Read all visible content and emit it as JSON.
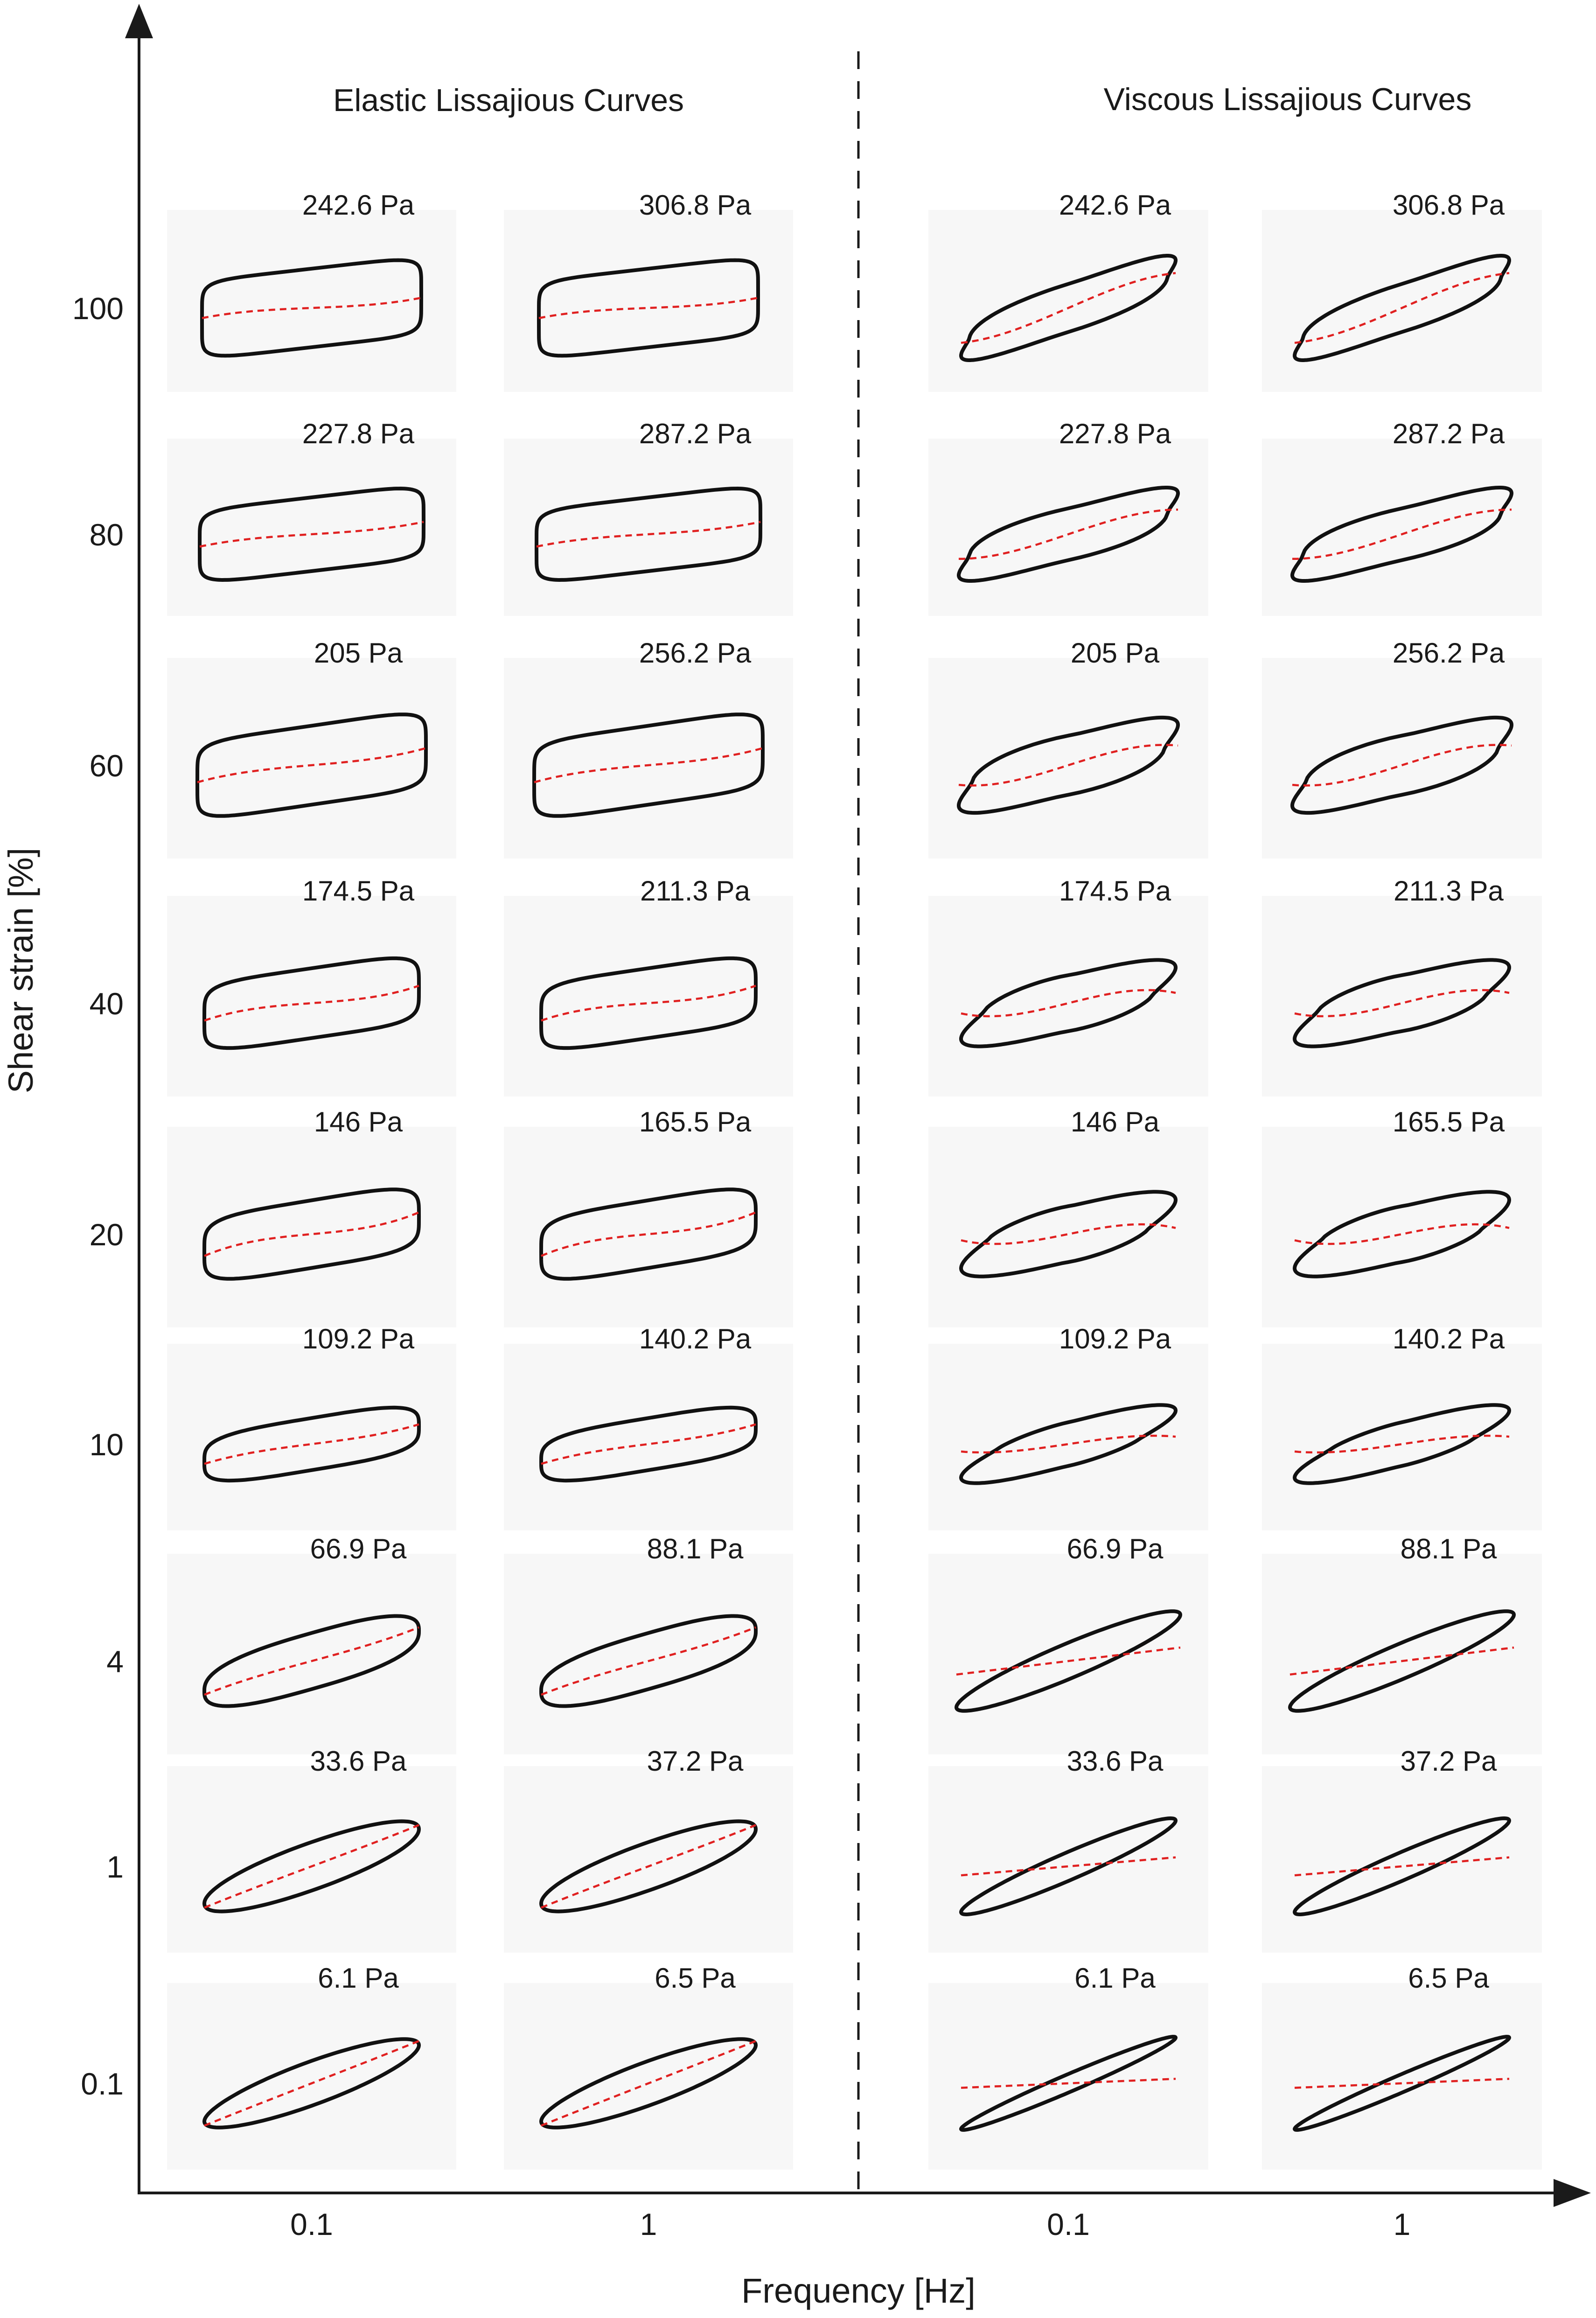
{
  "chart_data": {
    "type": "scatter",
    "title": "",
    "xlabel": "Frequency [Hz]",
    "ylabel": "Shear strain [%]",
    "sections": [
      "Elastic Lissajious Curves",
      "Viscous Lissajious Curves"
    ],
    "x_tick_labels": [
      "0.1",
      "1",
      "0.1",
      "1"
    ],
    "y_tick_labels": [
      "100",
      "80",
      "60",
      "40",
      "20",
      "10",
      "4",
      "1",
      "0.1"
    ],
    "grid": false,
    "legend": "none",
    "colors": {
      "loop": "#111111",
      "midline": "#e02020",
      "axis": "#1a1a1a"
    },
    "panels": [
      {
        "section": "Elastic Lissajious Curves",
        "frequency": "0.1",
        "strain": "100",
        "stress_label": "242.6 Pa"
      },
      {
        "section": "Elastic Lissajious Curves",
        "frequency": "1",
        "strain": "100",
        "stress_label": "306.8 Pa"
      },
      {
        "section": "Viscous Lissajious Curves",
        "frequency": "0.1",
        "strain": "100",
        "stress_label": "242.6 Pa"
      },
      {
        "section": "Viscous Lissajious Curves",
        "frequency": "1",
        "strain": "100",
        "stress_label": "306.8 Pa"
      },
      {
        "section": "Elastic Lissajious Curves",
        "frequency": "0.1",
        "strain": "80",
        "stress_label": "227.8 Pa"
      },
      {
        "section": "Elastic Lissajious Curves",
        "frequency": "1",
        "strain": "80",
        "stress_label": "287.2 Pa"
      },
      {
        "section": "Viscous Lissajious Curves",
        "frequency": "0.1",
        "strain": "80",
        "stress_label": "227.8 Pa"
      },
      {
        "section": "Viscous Lissajious Curves",
        "frequency": "1",
        "strain": "80",
        "stress_label": "287.2 Pa"
      },
      {
        "section": "Elastic Lissajious Curves",
        "frequency": "0.1",
        "strain": "60",
        "stress_label": "205 Pa"
      },
      {
        "section": "Elastic Lissajious Curves",
        "frequency": "1",
        "strain": "60",
        "stress_label": "256.2 Pa"
      },
      {
        "section": "Viscous Lissajious Curves",
        "frequency": "0.1",
        "strain": "60",
        "stress_label": "205 Pa"
      },
      {
        "section": "Viscous Lissajious Curves",
        "frequency": "1",
        "strain": "60",
        "stress_label": "256.2 Pa"
      },
      {
        "section": "Elastic Lissajious Curves",
        "frequency": "0.1",
        "strain": "40",
        "stress_label": "174.5 Pa"
      },
      {
        "section": "Elastic Lissajious Curves",
        "frequency": "1",
        "strain": "40",
        "stress_label": "211.3 Pa"
      },
      {
        "section": "Viscous Lissajious Curves",
        "frequency": "0.1",
        "strain": "40",
        "stress_label": "174.5 Pa"
      },
      {
        "section": "Viscous Lissajious Curves",
        "frequency": "1",
        "strain": "40",
        "stress_label": "211.3 Pa"
      },
      {
        "section": "Elastic Lissajious Curves",
        "frequency": "0.1",
        "strain": "20",
        "stress_label": "146 Pa"
      },
      {
        "section": "Elastic Lissajious Curves",
        "frequency": "1",
        "strain": "20",
        "stress_label": "165.5 Pa"
      },
      {
        "section": "Viscous Lissajious Curves",
        "frequency": "0.1",
        "strain": "20",
        "stress_label": "146 Pa"
      },
      {
        "section": "Viscous Lissajious Curves",
        "frequency": "1",
        "strain": "20",
        "stress_label": "165.5 Pa"
      },
      {
        "section": "Elastic Lissajious Curves",
        "frequency": "0.1",
        "strain": "10",
        "stress_label": "109.2 Pa"
      },
      {
        "section": "Elastic Lissajious Curves",
        "frequency": "1",
        "strain": "10",
        "stress_label": "140.2 Pa"
      },
      {
        "section": "Viscous Lissajious Curves",
        "frequency": "0.1",
        "strain": "10",
        "stress_label": "109.2 Pa"
      },
      {
        "section": "Viscous Lissajious Curves",
        "frequency": "1",
        "strain": "10",
        "stress_label": "140.2 Pa"
      },
      {
        "section": "Elastic Lissajious Curves",
        "frequency": "0.1",
        "strain": "4",
        "stress_label": "66.9 Pa"
      },
      {
        "section": "Elastic Lissajious Curves",
        "frequency": "1",
        "strain": "4",
        "stress_label": "88.1 Pa"
      },
      {
        "section": "Viscous Lissajious Curves",
        "frequency": "0.1",
        "strain": "4",
        "stress_label": "66.9 Pa"
      },
      {
        "section": "Viscous Lissajious Curves",
        "frequency": "1",
        "strain": "4",
        "stress_label": "88.1 Pa"
      },
      {
        "section": "Elastic Lissajious Curves",
        "frequency": "0.1",
        "strain": "1",
        "stress_label": "33.6 Pa"
      },
      {
        "section": "Elastic Lissajious Curves",
        "frequency": "1",
        "strain": "1",
        "stress_label": "37.2 Pa"
      },
      {
        "section": "Viscous Lissajious Curves",
        "frequency": "0.1",
        "strain": "1",
        "stress_label": "33.6 Pa"
      },
      {
        "section": "Viscous Lissajious Curves",
        "frequency": "1",
        "strain": "1",
        "stress_label": "37.2 Pa"
      },
      {
        "section": "Elastic Lissajious Curves",
        "frequency": "0.1",
        "strain": "0.1",
        "stress_label": "6.1 Pa"
      },
      {
        "section": "Elastic Lissajious Curves",
        "frequency": "1",
        "strain": "0.1",
        "stress_label": "6.5 Pa"
      },
      {
        "section": "Viscous Lissajious Curves",
        "frequency": "0.1",
        "strain": "0.1",
        "stress_label": "6.1 Pa"
      },
      {
        "section": "Viscous Lissajious Curves",
        "frequency": "1",
        "strain": "0.1",
        "stress_label": "6.5 Pa"
      }
    ]
  }
}
